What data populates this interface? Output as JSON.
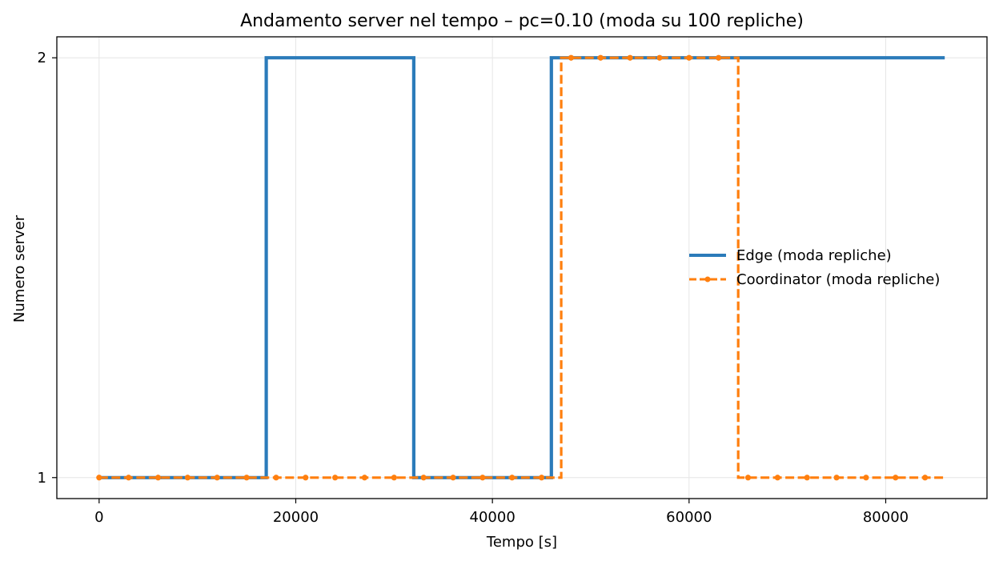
{
  "chart_data": {
    "type": "line",
    "title": "Andamento server nel tempo – pc=0.10 (moda su 100 repliche)",
    "xlabel": "Tempo [s]",
    "ylabel": "Numero server",
    "xlim": [
      -4300,
      90300
    ],
    "ylim": [
      0.95,
      2.05
    ],
    "xticks": [
      0,
      20000,
      40000,
      60000,
      80000
    ],
    "yticks": [
      1,
      2
    ],
    "grid": true,
    "legend_position": "center-right",
    "series": [
      {
        "name": "Edge (moda repliche)",
        "style": "step-solid",
        "color": "#2b7bba",
        "x": [
          0,
          17000,
          17000,
          32000,
          32000,
          46000,
          46000,
          86000
        ],
        "y": [
          1,
          1,
          2,
          2,
          1,
          1,
          2,
          2
        ]
      },
      {
        "name": "Coordinator (moda repliche)",
        "style": "step-dashed-markers",
        "color": "#ff7f0e",
        "x": [
          0,
          47000,
          47000,
          65000,
          65000,
          86000
        ],
        "y": [
          1,
          1,
          2,
          2,
          1,
          1
        ],
        "marker_x": [
          0,
          3000,
          6000,
          9000,
          12000,
          15000,
          18000,
          21000,
          24000,
          27000,
          30000,
          33000,
          36000,
          39000,
          42000,
          45000,
          48000,
          51000,
          54000,
          57000,
          60000,
          63000,
          66000,
          69000,
          72000,
          75000,
          78000,
          81000,
          84000
        ],
        "marker_y": [
          1,
          1,
          1,
          1,
          1,
          1,
          1,
          1,
          1,
          1,
          1,
          1,
          1,
          1,
          1,
          1,
          2,
          2,
          2,
          2,
          2,
          2,
          1,
          1,
          1,
          1,
          1,
          1,
          1
        ]
      }
    ]
  }
}
